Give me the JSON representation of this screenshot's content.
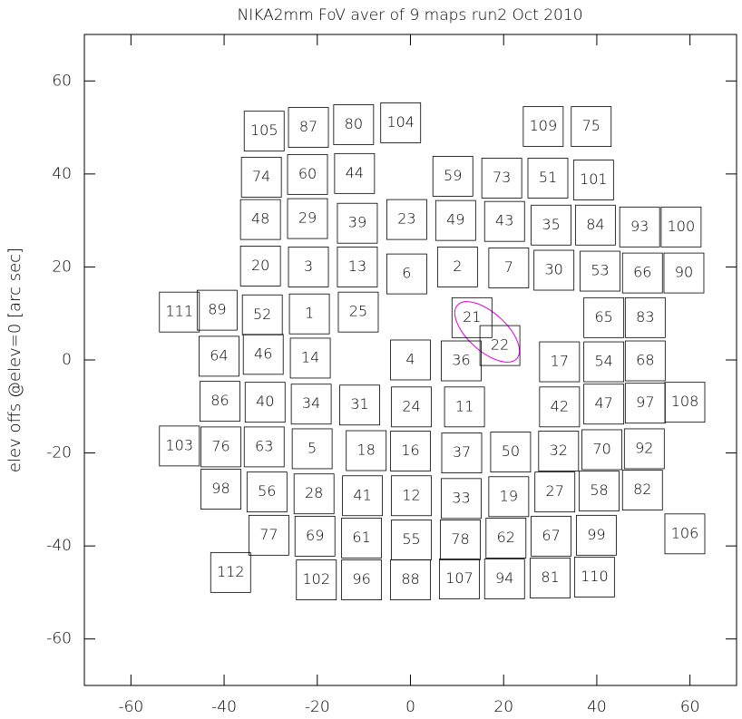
{
  "chart_data": {
    "type": "boxes",
    "title": "NIKA2mm FoV aver of 9 maps run2 Oct 2010",
    "y_label": "elev offs @elev=0  [arc sec]",
    "xlim": [
      -70,
      70
    ],
    "ylim": [
      -70,
      70
    ],
    "xticks": [
      -60,
      -40,
      -20,
      0,
      20,
      40,
      60
    ],
    "yticks": [
      -60,
      -40,
      -20,
      0,
      20,
      40,
      60
    ],
    "color": "#000000",
    "labels": [
      "105",
      "87",
      "80",
      "104",
      "109",
      "75",
      "74",
      "60",
      "44",
      "59",
      "73",
      "51",
      "101",
      "48",
      "29",
      "39",
      "23",
      "49",
      "43",
      "35",
      "84",
      "93",
      "100",
      "20",
      "3",
      "13",
      "6",
      "2",
      "7",
      "30",
      "53",
      "66",
      "90",
      "111",
      "89",
      "52",
      "1",
      "25",
      "21",
      "65",
      "83",
      "22",
      "64",
      "46",
      "14",
      "4",
      "36",
      "17",
      "54",
      "68",
      "86",
      "40",
      "34",
      "31",
      "24",
      "11",
      "42",
      "47",
      "97",
      "108",
      "103",
      "76",
      "63",
      "5",
      "18",
      "16",
      "37",
      "50",
      "32",
      "70",
      "92",
      "98",
      "56",
      "28",
      "41",
      "12",
      "33",
      "19",
      "27",
      "58",
      "82",
      "77",
      "69",
      "61",
      "55",
      "78",
      "62",
      "67",
      "99",
      "106",
      "112",
      "102",
      "96",
      "88",
      "107",
      "94",
      "81",
      "110"
    ],
    "x": [
      -31.4,
      -21.9,
      -12.2,
      -2.1,
      28.5,
      38.8,
      -32.0,
      -22.1,
      -12.0,
      9.1,
      19.6,
      29.5,
      39.3,
      -32.2,
      -22.1,
      -11.4,
      -0.8,
      9.7,
      20.2,
      30.2,
      39.7,
      49.2,
      58.1,
      -32.2,
      -21.9,
      -11.4,
      -0.8,
      10.1,
      21.1,
      30.8,
      40.7,
      49.8,
      58.7,
      -49.6,
      -41.5,
      -31.8,
      -21.7,
      -11.2,
      13.2,
      41.5,
      50.4,
      19.2,
      -41.1,
      -31.6,
      -21.5,
      0,
      10.9,
      32.0,
      41.5,
      50.4,
      -40.9,
      -31.2,
      -21.3,
      -10.9,
      0.2,
      11.6,
      32.0,
      41.5,
      50.4,
      58.9,
      -49.6,
      -40.7,
      -31.4,
      -21.1,
      -9.5,
      0,
      11.0,
      21.5,
      31.8,
      41.1,
      50.2,
      -40.7,
      -30.8,
      -20.7,
      -10.3,
      0.2,
      10.9,
      21.1,
      31.0,
      40.5,
      49.8,
      -30.4,
      -20.5,
      -10.5,
      0.2,
      10.7,
      20.5,
      30.2,
      39.9,
      58.9,
      -38.6,
      -20.2,
      -10.5,
      0,
      10.5,
      20.2,
      30.0,
      39.5
    ],
    "values": [
      49.2,
      50.0,
      50.6,
      51.0,
      50.2,
      50.2,
      39.3,
      39.9,
      40.1,
      39.5,
      39.1,
      39.1,
      38.7,
      30.2,
      30.4,
      29.4,
      30.2,
      30.0,
      29.8,
      29.0,
      29.0,
      28.6,
      28.6,
      20.2,
      20.0,
      20.0,
      18.5,
      20.0,
      19.8,
      19.3,
      19.1,
      18.7,
      18.7,
      10.3,
      10.7,
      9.7,
      9.9,
      10.3,
      9.1,
      9.1,
      9.1,
      3.1,
      0.8,
      1.2,
      0.4,
      0,
      -0.2,
      -0.4,
      -0.4,
      -0.2,
      -8.9,
      -9.1,
      -9.5,
      -9.7,
      -10.1,
      -10.1,
      -10.1,
      -9.5,
      -9.3,
      -9.1,
      -18.5,
      -18.7,
      -18.7,
      -19.1,
      -19.5,
      -19.6,
      -20.0,
      -19.8,
      -19.6,
      -19.3,
      -19.1,
      -27.8,
      -28.4,
      -28.8,
      -29.2,
      -29.2,
      -29.8,
      -29.4,
      -28.4,
      -28.2,
      -28.0,
      -37.7,
      -37.9,
      -38.3,
      -38.7,
      -38.7,
      -38.3,
      -37.9,
      -37.7,
      -37.4,
      -45.7,
      -47.3,
      -47.3,
      -47.3,
      -47.1,
      -47.1,
      -46.9,
      -46.7
    ]
  }
}
